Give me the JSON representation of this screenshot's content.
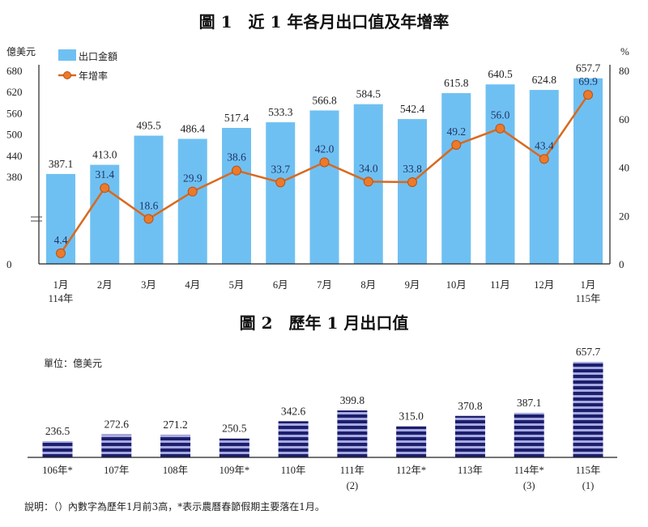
{
  "chart_data": [
    {
      "type": "bar+line",
      "title": "圖 1　近 1 年各月出口值及年增率",
      "ylabel_left": "億美元",
      "ylabel_right": "%",
      "categories": [
        "1月\n114年",
        "2月",
        "3月",
        "4月",
        "5月",
        "6月",
        "7月",
        "8月",
        "9月",
        "10月",
        "11月",
        "12月",
        "1月\n115年"
      ],
      "left_ticks": [
        0,
        380,
        440,
        500,
        560,
        620,
        680
      ],
      "left_axis_break": true,
      "right_ticks": [
        0,
        20,
        40,
        60,
        80
      ],
      "ylim_left": [
        0,
        680
      ],
      "ylim_right": [
        0,
        80
      ],
      "legend_placement": "top-left",
      "series": [
        {
          "name": "出口金額",
          "kind": "bar",
          "color": "#6fc0f2",
          "values": [
            387.1,
            413.0,
            495.5,
            486.4,
            517.4,
            533.3,
            566.8,
            584.5,
            542.4,
            615.8,
            640.5,
            624.8,
            657.7
          ]
        },
        {
          "name": "年增率",
          "kind": "line",
          "axis": "right",
          "color": "#d9691e",
          "values": [
            4.4,
            31.4,
            18.6,
            29.9,
            38.6,
            33.7,
            42.0,
            34.0,
            33.8,
            49.2,
            56.0,
            43.4,
            69.9
          ]
        }
      ]
    },
    {
      "type": "bar",
      "title": "圖 2　歷年 1 月出口值",
      "unit_label": "單位：億美元",
      "categories": [
        "106年*",
        "107年",
        "108年",
        "109年*",
        "110年",
        "111年",
        "112年*",
        "113年",
        "114年*",
        "115年"
      ],
      "sublabels": [
        "",
        "",
        "",
        "",
        "",
        "(2)",
        "",
        "",
        "(3)",
        "(1)"
      ],
      "values": [
        236.5,
        272.6,
        271.2,
        250.5,
        342.6,
        399.8,
        315.0,
        370.8,
        387.1,
        657.7
      ],
      "colors": {
        "stripe_dark": "#1c1f6b",
        "stripe_light": "#a7a9e2"
      }
    }
  ],
  "footnote": "說明：（）內數字為歷年1月前3高，*表示農曆春節假期主要落在1月。"
}
